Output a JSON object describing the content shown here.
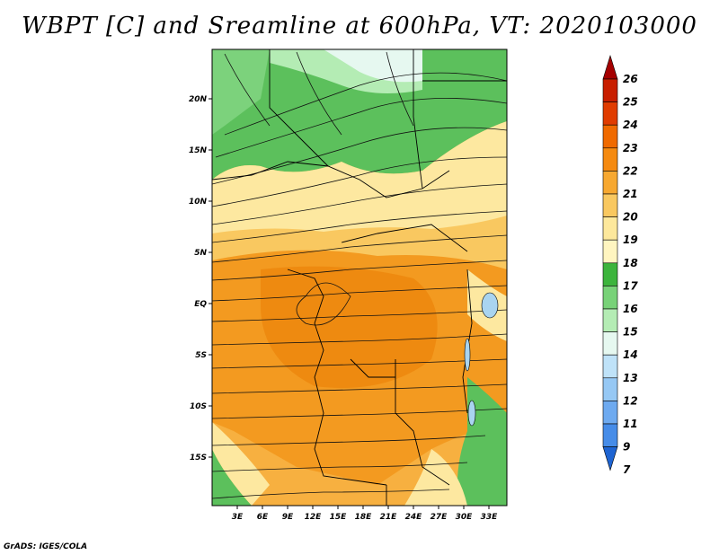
{
  "title": "WBPT [C] and Sreamline at 600hPa, VT: 2020103000",
  "footer": "GrADS: IGES/COLA",
  "lat_labels": [
    "20N",
    "15N",
    "10N",
    "5N",
    "EQ",
    "5S",
    "10S",
    "15S"
  ],
  "lon_labels": [
    "3E",
    "6E",
    "9E",
    "12E",
    "15E",
    "18E",
    "21E",
    "24E",
    "27E",
    "30E",
    "33E"
  ],
  "colorbar": {
    "labels": [
      "26",
      "25",
      "24",
      "23",
      "22",
      "21",
      "20",
      "19",
      "18",
      "17",
      "16",
      "15",
      "14",
      "13",
      "12",
      "11",
      "9",
      "7"
    ],
    "colors": [
      "#a50000",
      "#c81e00",
      "#e03c00",
      "#f06a00",
      "#f58a10",
      "#f7a830",
      "#f9c860",
      "#fde89c",
      "#fff5c0",
      "#3cb43c",
      "#78d278",
      "#b4ecb4",
      "#e6f8f0",
      "#bfe2f8",
      "#96c8f4",
      "#6eaaf0",
      "#468ce8",
      "#1e64d2"
    ]
  },
  "map": {
    "variable": "Wet-bulb potential temperature",
    "units": "C",
    "level": "600hPa",
    "valid_time": "2020103000",
    "overlay": "streamlines"
  }
}
